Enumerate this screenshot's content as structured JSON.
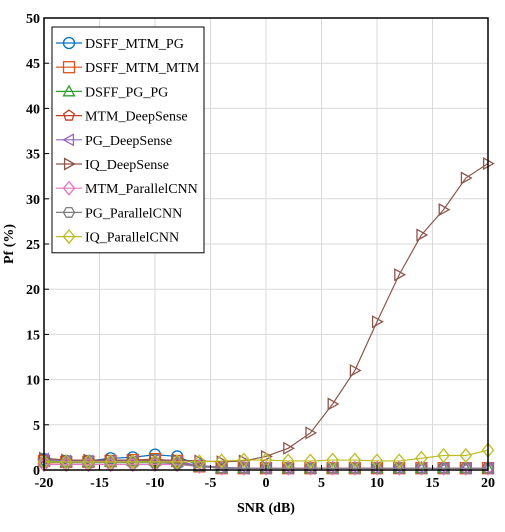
{
  "chart_data": {
    "type": "line",
    "title": "",
    "xlabel": "SNR (dB)",
    "ylabel": "Pf  (%)",
    "xlim": [
      -20,
      20
    ],
    "ylim": [
      0,
      50
    ],
    "grid": true,
    "legend_position": "top-left",
    "x_ticks": [
      -20,
      -15,
      -10,
      -5,
      0,
      5,
      10,
      15,
      20
    ],
    "y_ticks": [
      0,
      5,
      10,
      15,
      20,
      25,
      30,
      35,
      40,
      45,
      50
    ],
    "x": [
      -20,
      -18,
      -16,
      -14,
      -12,
      -10,
      -8,
      -6,
      -4,
      -2,
      0,
      2,
      4,
      6,
      8,
      10,
      12,
      14,
      16,
      18,
      20
    ],
    "series": [
      {
        "name": "DSFF_MTM_PG",
        "color": "#0072BD",
        "marker": "circle",
        "values": [
          1.2,
          1.0,
          1.0,
          1.3,
          1.4,
          1.7,
          1.5,
          0.5,
          0.3,
          0.2,
          0.2,
          0.2,
          0.2,
          0.2,
          0.2,
          0.2,
          0.2,
          0.2,
          0.2,
          0.2,
          0.2
        ]
      },
      {
        "name": "DSFF_MTM_MTM",
        "color": "#D95319",
        "marker": "square",
        "values": [
          1.0,
          0.9,
          0.9,
          1.0,
          1.1,
          1.2,
          1.0,
          0.4,
          0.2,
          0.2,
          0.2,
          0.2,
          0.2,
          0.2,
          0.2,
          0.2,
          0.2,
          0.2,
          0.2,
          0.2,
          0.2
        ]
      },
      {
        "name": "DSFF_PG_PG",
        "color": "#2CA02C",
        "marker": "triangle-up",
        "values": [
          1.0,
          0.9,
          0.9,
          0.9,
          1.0,
          1.0,
          0.9,
          0.4,
          0.2,
          0.2,
          0.2,
          0.2,
          0.2,
          0.2,
          0.2,
          0.2,
          0.2,
          0.2,
          0.2,
          0.2,
          0.2
        ]
      },
      {
        "name": "MTM_DeepSense",
        "color": "#C23B22",
        "marker": "pentagon",
        "values": [
          0.8,
          0.8,
          0.8,
          0.9,
          0.8,
          0.9,
          0.8,
          0.4,
          0.2,
          0.2,
          0.2,
          0.2,
          0.2,
          0.2,
          0.2,
          0.2,
          0.2,
          0.2,
          0.2,
          0.2,
          0.2
        ]
      },
      {
        "name": "PG_DeepSense",
        "color": "#9467BD",
        "marker": "triangle-left",
        "values": [
          1.2,
          1.0,
          1.0,
          1.0,
          1.0,
          1.1,
          0.9,
          0.5,
          0.3,
          0.2,
          0.2,
          0.2,
          0.2,
          0.2,
          0.2,
          0.2,
          0.2,
          0.2,
          0.2,
          0.2,
          0.2
        ]
      },
      {
        "name": "IQ_DeepSense",
        "color": "#8C564B",
        "marker": "triangle-right",
        "values": [
          1.3,
          1.1,
          1.1,
          1.1,
          1.1,
          1.1,
          1.1,
          1.0,
          0.9,
          1.0,
          1.5,
          2.4,
          4.1,
          7.3,
          11.0,
          16.4,
          21.6,
          26.0,
          28.8,
          32.3,
          33.9
        ]
      },
      {
        "name": "MTM_ParallelCNN",
        "color": "#E377C2",
        "marker": "diamond",
        "values": [
          0.6,
          0.6,
          0.6,
          0.6,
          0.6,
          0.6,
          0.6,
          0.4,
          0.2,
          0.2,
          0.2,
          0.2,
          0.2,
          0.2,
          0.2,
          0.2,
          0.2,
          0.2,
          0.2,
          0.2,
          0.2
        ]
      },
      {
        "name": "PG_ParallelCNN",
        "color": "#7F7F7F",
        "marker": "hexagon",
        "values": [
          0.9,
          0.8,
          0.8,
          0.8,
          0.8,
          0.8,
          0.7,
          0.4,
          0.2,
          0.2,
          0.2,
          0.2,
          0.2,
          0.2,
          0.2,
          0.2,
          0.2,
          0.2,
          0.2,
          0.2,
          0.2
        ]
      },
      {
        "name": "IQ_ParallelCNN",
        "color": "#BCBD22",
        "marker": "diamond",
        "values": [
          0.9,
          0.9,
          0.9,
          0.9,
          0.9,
          0.9,
          0.9,
          0.9,
          1.0,
          1.1,
          1.1,
          1.0,
          1.0,
          1.1,
          1.1,
          1.0,
          1.0,
          1.3,
          1.6,
          1.6,
          2.2
        ]
      }
    ]
  }
}
